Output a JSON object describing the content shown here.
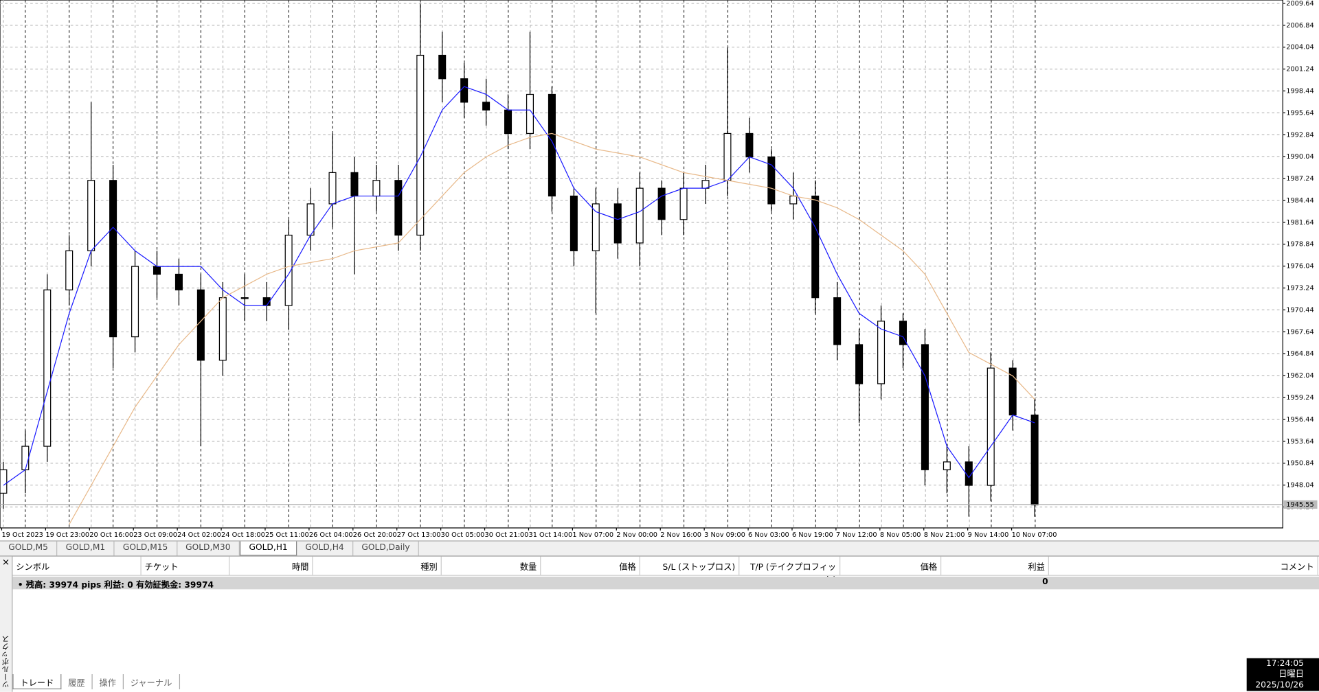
{
  "chart_data": {
    "type": "candlestick",
    "x_labels": [
      "19 Oct 2023",
      "19 Oct 23:00",
      "20 Oct 16:00",
      "23 Oct 09:00",
      "24 Oct 02:00",
      "24 Oct 18:00",
      "25 Oct 11:00",
      "26 Oct 04:00",
      "26 Oct 20:00",
      "27 Oct 13:00",
      "30 Oct 05:00",
      "30 Oct 21:00",
      "31 Oct 14:00",
      "1 Nov 07:00",
      "2 Nov 00:00",
      "2 Nov 16:00",
      "3 Nov 09:00",
      "6 Nov 03:00",
      "6 Nov 19:00",
      "7 Nov 12:00",
      "8 Nov 05:00",
      "8 Nov 21:00",
      "9 Nov 14:00",
      "10 Nov 07:00"
    ],
    "open": [
      1947,
      1950,
      1953,
      1973,
      1978,
      1987,
      1967,
      1976,
      1975,
      1973,
      1964,
      1972,
      1972,
      1971,
      1980,
      1984,
      1988,
      1985,
      1987,
      1980,
      2003,
      2000,
      1997,
      1996,
      1993,
      1998,
      1985,
      1978,
      1984,
      1979,
      1986,
      1982,
      1986,
      1987,
      1993,
      1990,
      1984,
      1985,
      1972,
      1966,
      1961,
      1969,
      1966,
      1950,
      1951,
      1948,
      1963,
      1957
    ],
    "high": [
      1951,
      1955,
      1975,
      1980,
      1997,
      1989,
      1978,
      1978,
      1977,
      1975,
      1974,
      1975,
      1974,
      1982,
      1986,
      1993,
      1990,
      1989,
      1989,
      2009.6,
      2006,
      2002,
      2000,
      1998,
      2006,
      1999,
      1986,
      1986,
      1986,
      1988,
      1987,
      1988,
      1989,
      2004,
      1995,
      1991,
      1988,
      1987,
      1974,
      1968,
      1971,
      1970,
      1968,
      1953,
      1953,
      1965,
      1964,
      1959
    ],
    "low": [
      1945,
      1947,
      1951,
      1971,
      1976,
      1963,
      1965,
      1972,
      1971,
      1953,
      1962,
      1969,
      1969,
      1968,
      1978,
      1981,
      1975,
      1983,
      1978,
      1978,
      1997,
      1995,
      1994,
      1991,
      1991,
      1983,
      1976,
      1970,
      1977,
      1976,
      1980,
      1980,
      1984,
      1985,
      1988,
      1983,
      1982,
      1970,
      1964,
      1956,
      1959,
      1963,
      1948,
      1947,
      1944,
      1946,
      1955,
      1944
    ],
    "close": [
      1950,
      1953,
      1973,
      1978,
      1987,
      1967,
      1976,
      1975,
      1973,
      1964,
      1972,
      1972,
      1971,
      1980,
      1984,
      1988,
      1985,
      1987,
      1980,
      2003,
      2000,
      1997,
      1996,
      1993,
      1998,
      1985,
      1978,
      1984,
      1979,
      1986,
      1982,
      1986,
      1987,
      1993,
      1990,
      1984,
      1985,
      1972,
      1966,
      1961,
      1969,
      1966,
      1950,
      1951,
      1948,
      1963,
      1957,
      1945.5
    ],
    "series": [
      {
        "color": "#1a1aff",
        "values": [
          1948,
          1950,
          1960,
          1970,
          1978,
          1981,
          1978,
          1976,
          1976,
          1976,
          1973,
          1971,
          1971,
          1975,
          1980,
          1984,
          1985,
          1985,
          1985,
          1990,
          1996,
          1999,
          1998,
          1996,
          1996,
          1992,
          1986,
          1983,
          1982,
          1983,
          1985,
          1986,
          1986,
          1987,
          1990,
          1989,
          1986,
          1981,
          1975,
          1970,
          1968,
          1967,
          1962,
          1953,
          1949,
          1953,
          1957,
          1956
        ]
      },
      {
        "color": "#e8b98a",
        "values": [
          null,
          null,
          null,
          1943,
          1948,
          1953,
          1958,
          1962,
          1966,
          1969,
          1972,
          1973.5,
          1975,
          1976,
          1976.5,
          1977,
          1978,
          1978.5,
          1979,
          1982,
          1985,
          1988,
          1990,
          1991.5,
          1992.5,
          1993,
          1992,
          1991,
          1990.5,
          1990,
          1989,
          1988,
          1987.5,
          1987,
          1986.5,
          1986,
          1985,
          1984.5,
          1983.5,
          1982,
          1980,
          1978,
          1975,
          1970,
          1965,
          1963.5,
          1962,
          1959
        ]
      }
    ],
    "ylim": [
      1942.56,
      2010.07
    ],
    "yticks": [
      2009.64,
      2006.84,
      2004.04,
      2001.24,
      1998.44,
      1995.64,
      1992.84,
      1990.04,
      1987.24,
      1984.44,
      1981.64,
      1978.84,
      1976.04,
      1973.24,
      1970.44,
      1967.64,
      1964.84,
      1962.04,
      1959.24,
      1956.44,
      1953.64,
      1950.84,
      1948.04,
      1945.24
    ],
    "current_price": 1945.55,
    "grid": true
  },
  "tabs": [
    "GOLD,M5",
    "GOLD,M1",
    "GOLD,M15",
    "GOLD,M30",
    "GOLD,H1",
    "GOLD,H4",
    "GOLD,Daily"
  ],
  "terminal": {
    "columns": [
      "シンボル",
      "チケット",
      "時間",
      "種別",
      "数量",
      "価格",
      "S/L (ストップロス)",
      "T/P (テイクプロフィット)",
      "価格",
      "利益",
      "コメント"
    ],
    "balance": "残高: 39974 pips  利益: 0  有効証拠金: 39974",
    "profit": "0",
    "side_title": "ツールボックス",
    "bottom_tabs": [
      "トレード",
      "履歴",
      "操作",
      "ジャーナル"
    ]
  },
  "clock": {
    "time": "17:24:05",
    "day": "日曜日",
    "date": "2025/10/26"
  }
}
